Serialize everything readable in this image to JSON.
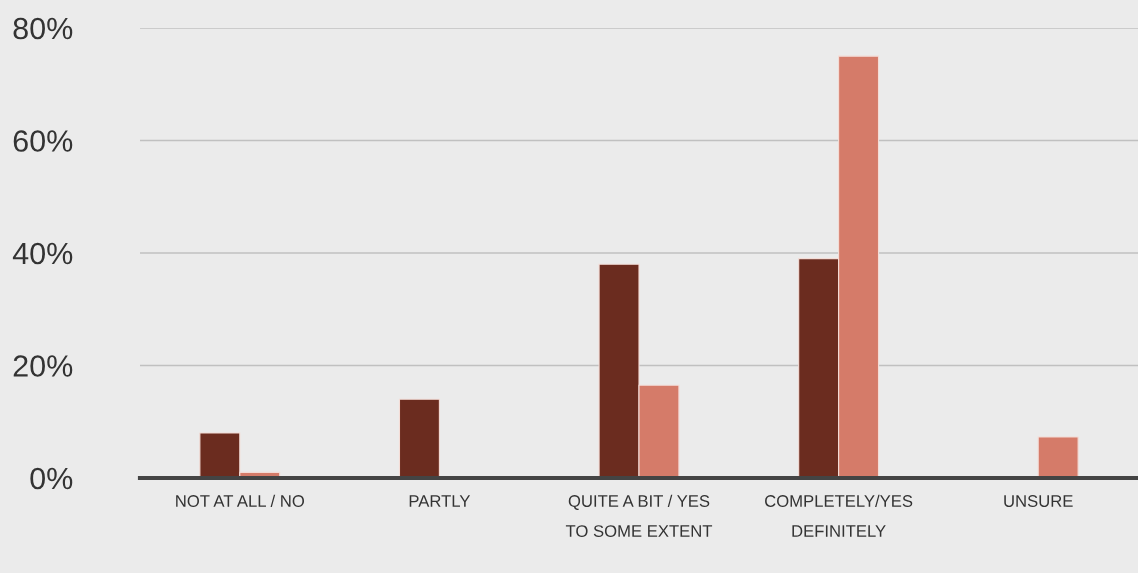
{
  "chart_data": {
    "type": "bar",
    "categories": [
      "NOT AT ALL / NO",
      "PARTLY",
      "QUITE A BIT / YES\nTO SOME EXTENT",
      "COMPLETELY/YES\nDEFINITELY",
      "UNSURE"
    ],
    "series": [
      {
        "color": "#6b2c1f",
        "values": [
          8,
          14,
          38,
          39,
          null
        ]
      },
      {
        "color": "#d57b69",
        "values": [
          1,
          null,
          16.5,
          75,
          7.3
        ]
      }
    ],
    "ylim": [
      0,
      80
    ],
    "yticks": [
      {
        "value": 0,
        "label": "0%"
      },
      {
        "value": 20,
        "label": "20%"
      },
      {
        "value": 40,
        "label": "40%"
      },
      {
        "value": 60,
        "label": "60%"
      },
      {
        "value": 80,
        "label": "80%"
      }
    ],
    "grid": "y"
  }
}
